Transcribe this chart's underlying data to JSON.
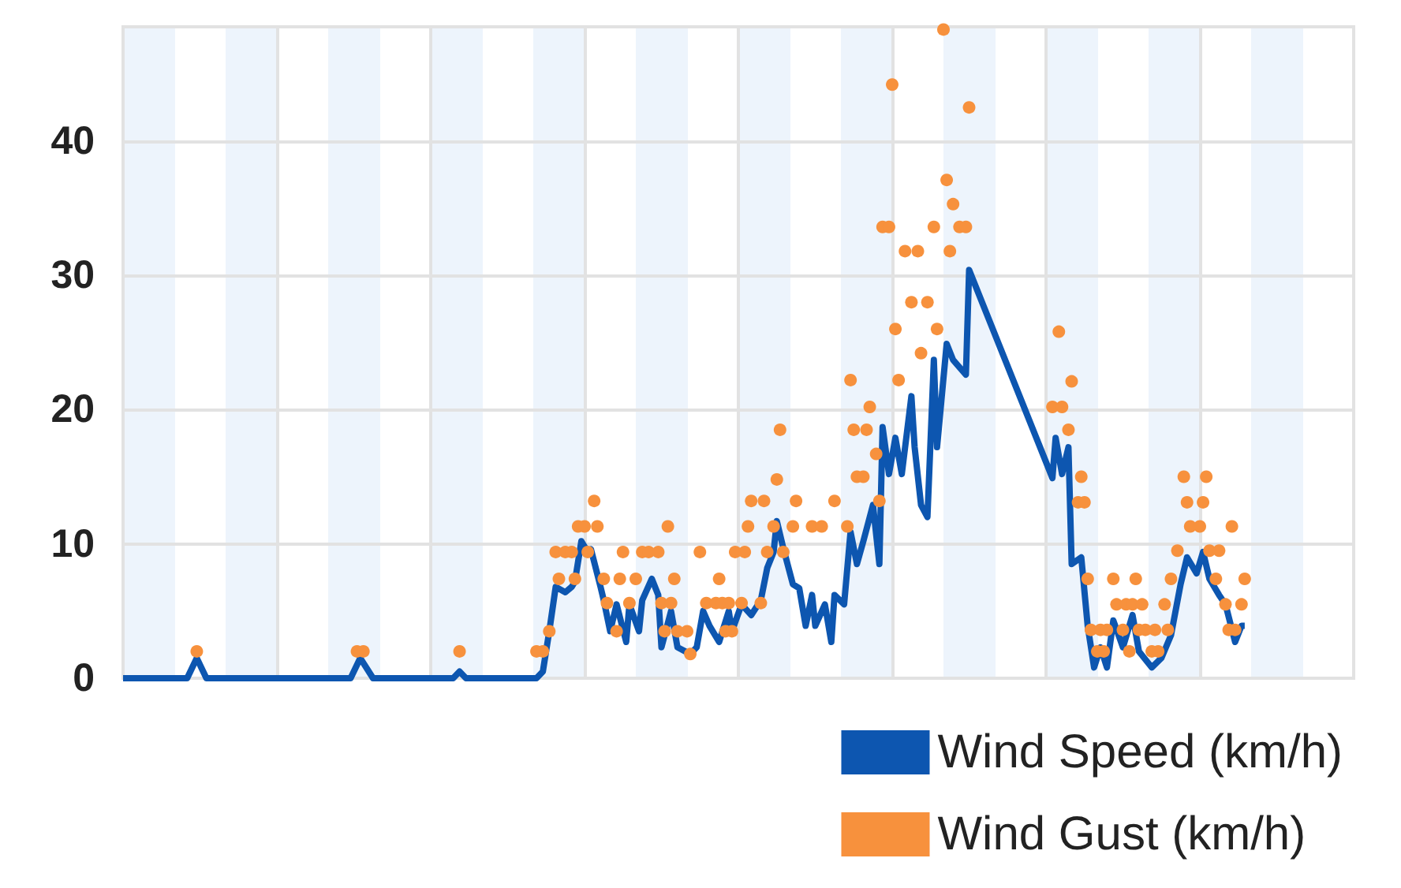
{
  "chart_data": {
    "type": "line",
    "categories": [
      null,
      null,
      null,
      null,
      null,
      null,
      null,
      null,
      null,
      null,
      null,
      null,
      null,
      null,
      null,
      null,
      null,
      null,
      null,
      null,
      null,
      null,
      null,
      null,
      null,
      null,
      null,
      null,
      null,
      null,
      null,
      null,
      null,
      null,
      null,
      null,
      null,
      null,
      null,
      null,
      null,
      null,
      null,
      null,
      null,
      null,
      null,
      null,
      null,
      null,
      null,
      null,
      null,
      null,
      null,
      null,
      null,
      null,
      null,
      null,
      null,
      null,
      null,
      null,
      null,
      null,
      null,
      null,
      null,
      null,
      null,
      null,
      null,
      null,
      null,
      null,
      null,
      null,
      null,
      null,
      null,
      null,
      null,
      null,
      null,
      null,
      null,
      null,
      null,
      null,
      null,
      null,
      null,
      null,
      null,
      null,
      null,
      null,
      null,
      null,
      null,
      null,
      null,
      null,
      null,
      null,
      null,
      null,
      null,
      null,
      null,
      null,
      null,
      null,
      null,
      null,
      null,
      null,
      null,
      null,
      null,
      null,
      null,
      null,
      null,
      null,
      null,
      null,
      null,
      null,
      null,
      null,
      null,
      null,
      null,
      null,
      null,
      null,
      null,
      null,
      null,
      null,
      null,
      null,
      null,
      null,
      null,
      null,
      null,
      null,
      null,
      null,
      null,
      null,
      null,
      null,
      null,
      null,
      null,
      null,
      null,
      null,
      null,
      null,
      null,
      null,
      null,
      null,
      null,
      null,
      null,
      null,
      null,
      null,
      null,
      null,
      null,
      null,
      null,
      null,
      null,
      null,
      null,
      null,
      null,
      null,
      null,
      null,
      null,
      null,
      null,
      null,
      null,
      null,
      null,
      null,
      null,
      null,
      null,
      null,
      null,
      null,
      null,
      null,
      null,
      null,
      null,
      null,
      null,
      null,
      null,
      null,
      null,
      null,
      null,
      null,
      null,
      null,
      null,
      null,
      null,
      null,
      null,
      null,
      null,
      null,
      null,
      null,
      null,
      null,
      null,
      null,
      null,
      null,
      null,
      null,
      null,
      null,
      null,
      null,
      null,
      null,
      null,
      null,
      null,
      null,
      null,
      null,
      null,
      null,
      null,
      null,
      null,
      null,
      null,
      null,
      null,
      null,
      null,
      null,
      null,
      null,
      null,
      null,
      null,
      null,
      null,
      null,
      null,
      null,
      null,
      null,
      null,
      null,
      null,
      null,
      null,
      null,
      null,
      null,
      null,
      null,
      null,
      null,
      null,
      null,
      null,
      null,
      null,
      null,
      null,
      null,
      null,
      null,
      null,
      null,
      null,
      null,
      null,
      null,
      null,
      null,
      null,
      null,
      null,
      null,
      null,
      null,
      null,
      null,
      null,
      null,
      null,
      null,
      null,
      null,
      null,
      null,
      null,
      null,
      null,
      null,
      null,
      null,
      null,
      null,
      null,
      null,
      null,
      null,
      null,
      null,
      null,
      null,
      null,
      null,
      null,
      null,
      null,
      null,
      null,
      null,
      null,
      null,
      null,
      null,
      null,
      null,
      null,
      null,
      null,
      null,
      null,
      null,
      null,
      null,
      null,
      null,
      null,
      null,
      null,
      null,
      null,
      null,
      null,
      null,
      null,
      null,
      null,
      null,
      null,
      null,
      null,
      null,
      null,
      null,
      null,
      null,
      null,
      null,
      null,
      null,
      null,
      null,
      null
    ],
    "ylim": [
      0,
      48.5
    ],
    "yticks": [
      0,
      10,
      20,
      30,
      40
    ],
    "grid": true,
    "legend": "bottom right",
    "series": [
      {
        "name": "Wind Speed (km/h)",
        "color": "#0d56b0",
        "marker": "none",
        "values": [
          0,
          null,
          null,
          null,
          null,
          null,
          null,
          null,
          null,
          null,
          null,
          null,
          null,
          null,
          null,
          null,
          null,
          null,
          null,
          null,
          0,
          null,
          null,
          1.5,
          null,
          null,
          0,
          null,
          null,
          null,
          null,
          null,
          null,
          null,
          null,
          null,
          null,
          null,
          null,
          null,
          null,
          null,
          null,
          null,
          null,
          null,
          null,
          null,
          null,
          null,
          null,
          null,
          null,
          null,
          null,
          null,
          null,
          null,
          null,
          null,
          null,
          null,
          null,
          null,
          null,
          null,
          null,
          null,
          null,
          null,
          null,
          0,
          null,
          null,
          1.5,
          null,
          null,
          null,
          0,
          null,
          null,
          null,
          null,
          null,
          null,
          null,
          null,
          null,
          null,
          null,
          null,
          null,
          null,
          null,
          null,
          null,
          null,
          null,
          null,
          null,
          null,
          null,
          null,
          0,
          null,
          0.5,
          null,
          0,
          null,
          null,
          null,
          null,
          null,
          null,
          null,
          null,
          null,
          null,
          null,
          null,
          null,
          null,
          null,
          null,
          null,
          null,
          null,
          null,
          null,
          0,
          null,
          0.5,
          null,
          3.5,
          null,
          6.8,
          null,
          null,
          6.4,
          null,
          6.8,
          7.2,
          null,
          10.2,
          null,
          9.4,
          9.6,
          null,
          null,
          6.8,
          5.8,
          null,
          3.5,
          null,
          5.5,
          null,
          null,
          2.7,
          5.5,
          null,
          null,
          3.5,
          5.8,
          null,
          null,
          7.4,
          null,
          6.2,
          2.3,
          null,
          null,
          5,
          null,
          2.3,
          null,
          null,
          null,
          1.8,
          null,
          2.3,
          null,
          5,
          null,
          3.9,
          null,
          null,
          2.7,
          null,
          null,
          5,
          3.5,
          null,
          null,
          5.5,
          null,
          null,
          4.7,
          null,
          null,
          5.8,
          null,
          8.2,
          null,
          9.4,
          11.7,
          null,
          9.7,
          null,
          null,
          7,
          null,
          6.7,
          null,
          3.9,
          null,
          6.2,
          3.9,
          null,
          null,
          5.5,
          null,
          2.7,
          6.2,
          null,
          null,
          5.5,
          null,
          10.9,
          null,
          8.5,
          null,
          10.2,
          null,
          null,
          12.9,
          null,
          8.5,
          18.7,
          null,
          15.2,
          null,
          17.9,
          null,
          15.2,
          null,
          null,
          21,
          17.2,
          null,
          12.9,
          null,
          12,
          null,
          23.7,
          17.2,
          null,
          null,
          24.9,
          null,
          23.7,
          null,
          null,
          null,
          22.6,
          30.4,
          null,
          null,
          null,
          null,
          null,
          null,
          null,
          null,
          null,
          null,
          null,
          null,
          null,
          null,
          null,
          null,
          null,
          null,
          null,
          null,
          null,
          null,
          null,
          null,
          null,
          14.9,
          17.9,
          null,
          15.2,
          null,
          17.2,
          8.5,
          null,
          null,
          9,
          null,
          3.9,
          null,
          0.8,
          null,
          2.3,
          null,
          0.8,
          null,
          4.3,
          null,
          null,
          2.3,
          null,
          null,
          4.7,
          null,
          2,
          null,
          null,
          null,
          0.8,
          null,
          null,
          1.5,
          null,
          null,
          3.2,
          null,
          null,
          7,
          null,
          9,
          null,
          null,
          7.8,
          null,
          9.4,
          null,
          7.4,
          null,
          null,
          6.2,
          null,
          5.5,
          null,
          null,
          2.7,
          null,
          3.9,
          3.9,
          null,
          null,
          null,
          null,
          null,
          null,
          null,
          null,
          null,
          null,
          null,
          null,
          null,
          null,
          null,
          null,
          null,
          null,
          null,
          null,
          null,
          null,
          null,
          null,
          null,
          null,
          null,
          null,
          null,
          null,
          null,
          null,
          null,
          null
        ]
      },
      {
        "name": "Wind Gust (km/h)",
        "type": "scatter",
        "color": "#f7913d",
        "marker": "circle",
        "values": [
          null,
          null,
          null,
          null,
          null,
          null,
          null,
          null,
          null,
          null,
          null,
          null,
          null,
          null,
          null,
          null,
          null,
          null,
          null,
          null,
          null,
          null,
          null,
          2,
          null,
          null,
          null,
          null,
          null,
          null,
          null,
          null,
          null,
          null,
          null,
          null,
          null,
          null,
          null,
          null,
          null,
          null,
          null,
          null,
          null,
          null,
          null,
          null,
          null,
          null,
          null,
          null,
          null,
          null,
          null,
          null,
          null,
          null,
          null,
          null,
          null,
          null,
          null,
          null,
          null,
          null,
          null,
          null,
          null,
          null,
          null,
          null,
          null,
          2,
          null,
          2,
          null,
          null,
          null,
          null,
          null,
          null,
          null,
          null,
          null,
          null,
          null,
          null,
          null,
          null,
          null,
          null,
          null,
          null,
          null,
          null,
          null,
          null,
          null,
          null,
          null,
          null,
          null,
          null,
          null,
          2,
          null,
          null,
          null,
          null,
          null,
          null,
          null,
          null,
          null,
          null,
          null,
          null,
          null,
          null,
          null,
          null,
          null,
          null,
          null,
          null,
          null,
          null,
          null,
          2,
          null,
          2,
          null,
          3.5,
          null,
          9.4,
          7.4,
          null,
          9.4,
          null,
          9.4,
          7.4,
          11.3,
          null,
          11.3,
          9.4,
          null,
          13.2,
          11.3,
          null,
          7.4,
          5.6,
          null,
          null,
          3.5,
          7.4,
          9.4,
          null,
          5.6,
          null,
          7.4,
          null,
          9.4,
          null,
          9.4,
          null,
          null,
          9.4,
          5.6,
          3.5,
          11.3,
          5.6,
          7.4,
          3.5,
          null,
          null,
          3.5,
          1.8,
          null,
          null,
          9.4,
          null,
          5.6,
          null,
          null,
          5.6,
          7.4,
          5.6,
          3.5,
          5.6,
          3.5,
          9.4,
          null,
          5.6,
          9.4,
          11.3,
          13.2,
          null,
          null,
          5.6,
          13.2,
          9.4,
          null,
          11.3,
          14.8,
          18.5,
          9.4,
          null,
          null,
          11.3,
          13.2,
          null,
          null,
          null,
          null,
          11.3,
          null,
          null,
          11.3,
          null,
          null,
          null,
          13.2,
          null,
          null,
          null,
          11.3,
          22.2,
          18.5,
          15,
          null,
          15,
          18.5,
          20.2,
          null,
          16.7,
          13.2,
          33.6,
          null,
          33.6,
          44.2,
          26,
          22.2,
          null,
          31.8,
          null,
          28,
          null,
          31.8,
          24.2,
          null,
          28,
          null,
          33.6,
          26,
          null,
          48.3,
          37.1,
          31.8,
          35.3,
          null,
          33.6,
          null,
          33.6,
          42.5,
          null,
          null,
          null,
          null,
          null,
          null,
          null,
          null,
          null,
          null,
          null,
          null,
          null,
          null,
          null,
          null,
          null,
          null,
          null,
          null,
          null,
          null,
          null,
          null,
          null,
          20.2,
          null,
          25.8,
          20.2,
          null,
          18.5,
          22.1,
          null,
          13.1,
          15,
          13.1,
          7.4,
          3.6,
          null,
          2,
          3.6,
          2,
          3.6,
          null,
          7.4,
          5.5,
          null,
          3.6,
          5.5,
          2,
          5.5,
          7.4,
          3.6,
          5.5,
          3.6,
          null,
          2,
          3.6,
          2,
          null,
          5.5,
          3.6,
          7.4,
          null,
          9.5,
          null,
          15,
          13.1,
          11.3,
          null,
          null,
          11.3,
          13.1,
          15,
          9.5,
          null,
          7.4,
          9.5,
          null,
          5.5,
          3.6,
          11.3,
          3.6,
          null,
          5.5,
          7.4,
          null,
          null,
          null,
          null,
          null,
          null,
          null,
          null,
          null,
          null,
          null,
          null,
          null,
          null,
          null,
          null,
          null,
          null,
          null,
          null,
          null,
          null,
          null,
          null,
          null,
          null,
          null,
          null,
          null,
          null,
          null,
          null,
          null,
          null
        ]
      }
    ]
  }
}
